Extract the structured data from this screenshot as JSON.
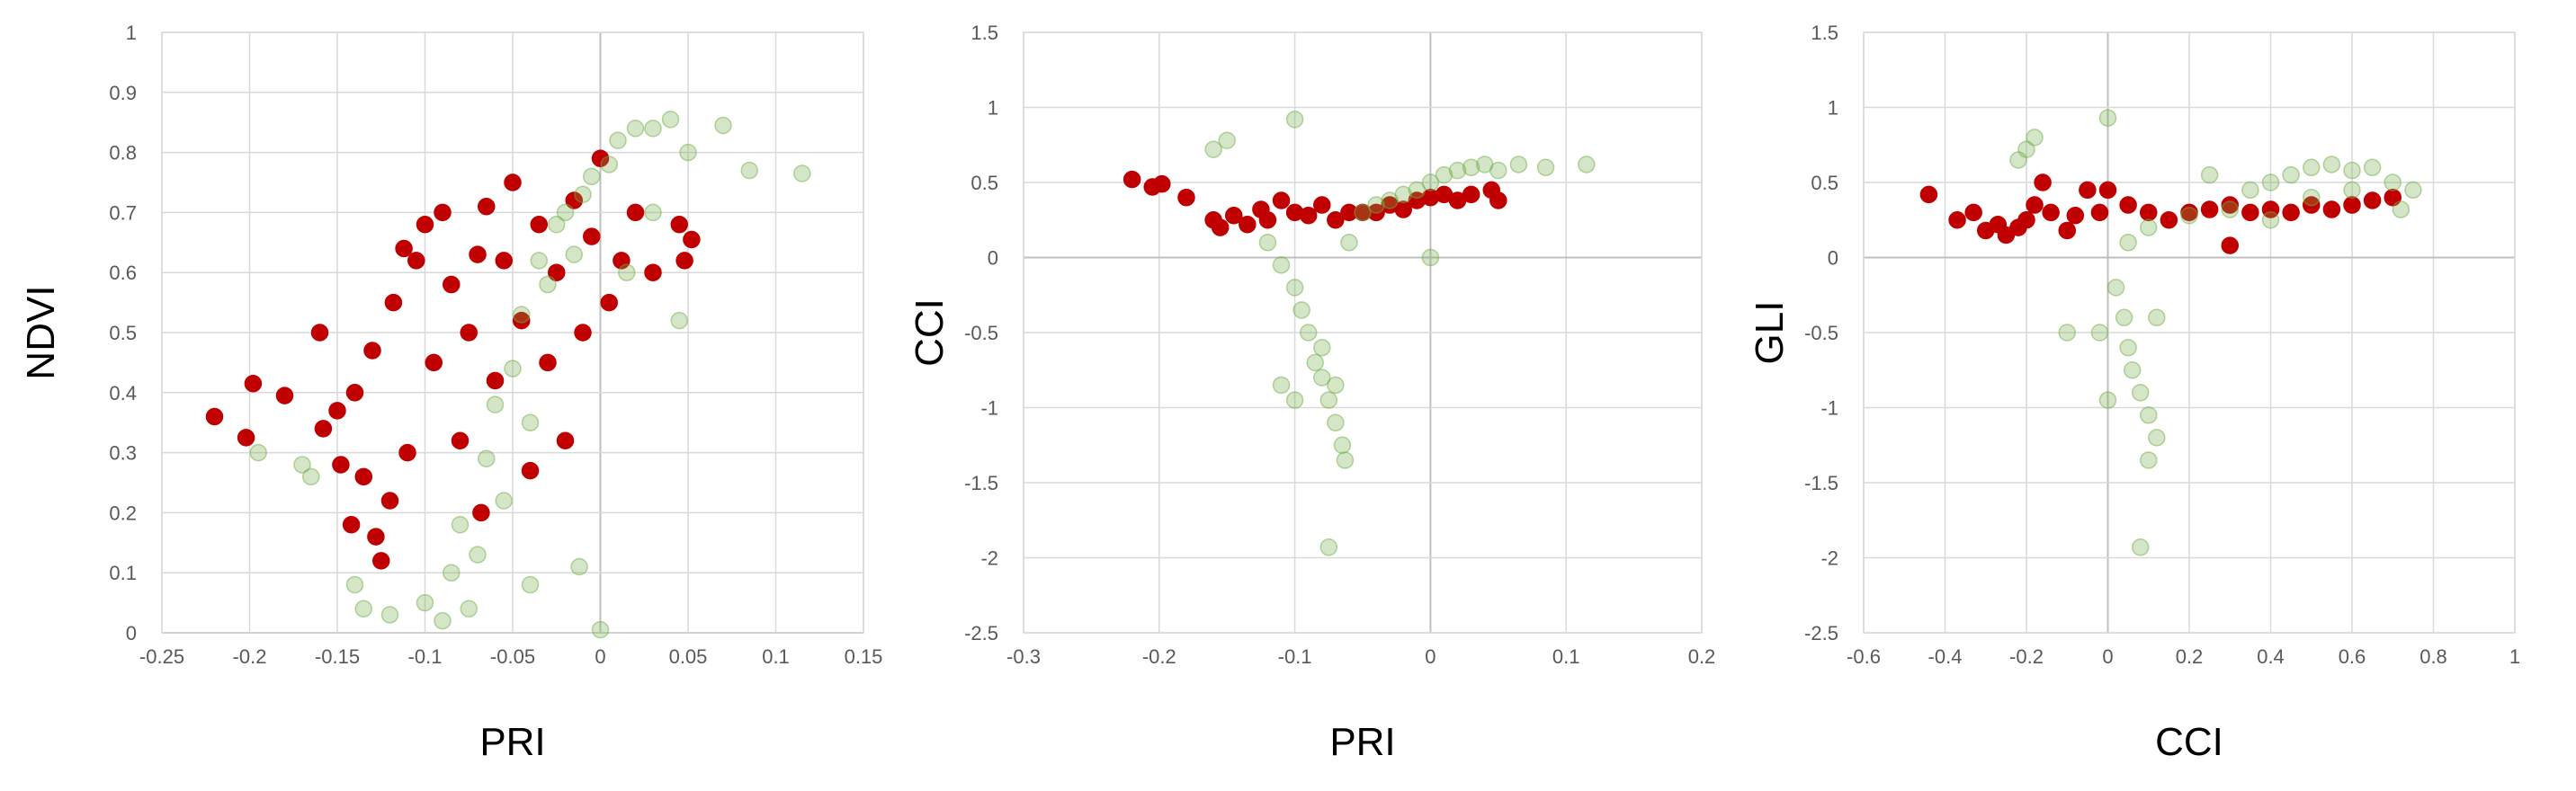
{
  "chart_data": [
    {
      "type": "scatter",
      "title": "",
      "xlabel": "PRI",
      "ylabel": "NDVI",
      "xlim": [
        -0.25,
        0.15
      ],
      "ylim": [
        0,
        1
      ],
      "xticks": [
        "-0.25",
        "-0.2",
        "-0.15",
        "-0.1",
        "-0.05",
        "0",
        "0.05",
        "0.1",
        "0.15"
      ],
      "yticks": [
        "0",
        "0.1",
        "0.2",
        "0.3",
        "0.4",
        "0.5",
        "0.6",
        "0.7",
        "0.8",
        "0.9",
        "1"
      ],
      "grid": true,
      "legend": "none",
      "series": [
        {
          "color": "#c00000",
          "opacity": 1.0,
          "points": [
            [
              -0.22,
              0.36
            ],
            [
              -0.202,
              0.325
            ],
            [
              -0.198,
              0.415
            ],
            [
              -0.18,
              0.395
            ],
            [
              -0.16,
              0.5
            ],
            [
              -0.158,
              0.34
            ],
            [
              -0.15,
              0.37
            ],
            [
              -0.148,
              0.28
            ],
            [
              -0.142,
              0.18
            ],
            [
              -0.14,
              0.4
            ],
            [
              -0.135,
              0.26
            ],
            [
              -0.13,
              0.47
            ],
            [
              -0.128,
              0.16
            ],
            [
              -0.125,
              0.12
            ],
            [
              -0.12,
              0.22
            ],
            [
              -0.118,
              0.55
            ],
            [
              -0.112,
              0.64
            ],
            [
              -0.11,
              0.3
            ],
            [
              -0.105,
              0.62
            ],
            [
              -0.1,
              0.68
            ],
            [
              -0.095,
              0.45
            ],
            [
              -0.09,
              0.7
            ],
            [
              -0.085,
              0.58
            ],
            [
              -0.08,
              0.32
            ],
            [
              -0.075,
              0.5
            ],
            [
              -0.07,
              0.63
            ],
            [
              -0.068,
              0.2
            ],
            [
              -0.065,
              0.71
            ],
            [
              -0.06,
              0.42
            ],
            [
              -0.055,
              0.62
            ],
            [
              -0.05,
              0.75
            ],
            [
              -0.045,
              0.52
            ],
            [
              -0.04,
              0.27
            ],
            [
              -0.035,
              0.68
            ],
            [
              -0.03,
              0.45
            ],
            [
              -0.025,
              0.6
            ],
            [
              -0.02,
              0.32
            ],
            [
              -0.015,
              0.72
            ],
            [
              -0.01,
              0.5
            ],
            [
              -0.005,
              0.66
            ],
            [
              0.0,
              0.79
            ],
            [
              0.005,
              0.55
            ],
            [
              0.012,
              0.62
            ],
            [
              0.02,
              0.7
            ],
            [
              0.03,
              0.6
            ],
            [
              0.045,
              0.68
            ],
            [
              0.048,
              0.62
            ],
            [
              0.052,
              0.655
            ]
          ]
        },
        {
          "color": "#70ad47",
          "opacity": 0.3,
          "points": [
            [
              -0.195,
              0.3
            ],
            [
              -0.17,
              0.28
            ],
            [
              -0.165,
              0.26
            ],
            [
              -0.14,
              0.08
            ],
            [
              -0.135,
              0.04
            ],
            [
              -0.12,
              0.03
            ],
            [
              -0.1,
              0.05
            ],
            [
              -0.09,
              0.02
            ],
            [
              -0.085,
              0.1
            ],
            [
              -0.08,
              0.18
            ],
            [
              -0.075,
              0.04
            ],
            [
              -0.07,
              0.13
            ],
            [
              -0.065,
              0.29
            ],
            [
              -0.06,
              0.38
            ],
            [
              -0.055,
              0.22
            ],
            [
              -0.05,
              0.44
            ],
            [
              -0.045,
              0.53
            ],
            [
              -0.04,
              0.35
            ],
            [
              -0.035,
              0.62
            ],
            [
              -0.03,
              0.58
            ],
            [
              -0.025,
              0.68
            ],
            [
              -0.02,
              0.7
            ],
            [
              -0.015,
              0.63
            ],
            [
              -0.012,
              0.11
            ],
            [
              -0.01,
              0.73
            ],
            [
              -0.005,
              0.76
            ],
            [
              0.0,
              0.005
            ],
            [
              0.005,
              0.78
            ],
            [
              0.01,
              0.82
            ],
            [
              0.02,
              0.84
            ],
            [
              0.03,
              0.84
            ],
            [
              0.04,
              0.855
            ],
            [
              0.05,
              0.8
            ],
            [
              0.07,
              0.845
            ],
            [
              0.085,
              0.77
            ],
            [
              0.115,
              0.765
            ],
            [
              0.045,
              0.52
            ],
            [
              0.03,
              0.7
            ],
            [
              0.015,
              0.6
            ],
            [
              -0.04,
              0.08
            ]
          ]
        }
      ]
    },
    {
      "type": "scatter",
      "title": "",
      "xlabel": "PRI",
      "ylabel": "CCI",
      "xlim": [
        -0.3,
        0.2
      ],
      "ylim": [
        -2.5,
        1.5
      ],
      "xticks": [
        "-0.3",
        "-0.2",
        "-0.1",
        "0",
        "0.1",
        "0.2"
      ],
      "yticks": [
        "-2.5",
        "-2",
        "-1.5",
        "-1",
        "-0.5",
        "0",
        "0.5",
        "1",
        "1.5"
      ],
      "grid": true,
      "legend": "none",
      "series": [
        {
          "color": "#c00000",
          "opacity": 1.0,
          "points": [
            [
              -0.22,
              0.52
            ],
            [
              -0.205,
              0.47
            ],
            [
              -0.198,
              0.49
            ],
            [
              -0.18,
              0.4
            ],
            [
              -0.16,
              0.25
            ],
            [
              -0.155,
              0.2
            ],
            [
              -0.145,
              0.28
            ],
            [
              -0.135,
              0.22
            ],
            [
              -0.125,
              0.32
            ],
            [
              -0.12,
              0.25
            ],
            [
              -0.11,
              0.38
            ],
            [
              -0.1,
              0.3
            ],
            [
              -0.09,
              0.28
            ],
            [
              -0.08,
              0.35
            ],
            [
              -0.07,
              0.25
            ],
            [
              -0.06,
              0.3
            ],
            [
              -0.05,
              0.3
            ],
            [
              -0.04,
              0.3
            ],
            [
              -0.03,
              0.35
            ],
            [
              -0.02,
              0.32
            ],
            [
              -0.01,
              0.38
            ],
            [
              0.0,
              0.4
            ],
            [
              0.01,
              0.42
            ],
            [
              0.02,
              0.38
            ],
            [
              0.03,
              0.42
            ],
            [
              0.045,
              0.45
            ],
            [
              0.05,
              0.38
            ]
          ]
        },
        {
          "color": "#70ad47",
          "opacity": 0.3,
          "points": [
            [
              -0.16,
              0.72
            ],
            [
              -0.15,
              0.78
            ],
            [
              -0.1,
              0.92
            ],
            [
              -0.12,
              0.1
            ],
            [
              -0.11,
              -0.05
            ],
            [
              -0.1,
              -0.2
            ],
            [
              -0.095,
              -0.35
            ],
            [
              -0.09,
              -0.5
            ],
            [
              -0.085,
              -0.7
            ],
            [
              -0.08,
              -0.8
            ],
            [
              -0.075,
              -0.95
            ],
            [
              -0.07,
              -1.1
            ],
            [
              -0.065,
              -1.25
            ],
            [
              -0.063,
              -1.35
            ],
            [
              -0.075,
              -1.93
            ],
            [
              -0.08,
              -0.6
            ],
            [
              -0.07,
              -0.85
            ],
            [
              -0.06,
              0.1
            ],
            [
              -0.05,
              0.3
            ],
            [
              -0.04,
              0.35
            ],
            [
              -0.03,
              0.38
            ],
            [
              -0.02,
              0.42
            ],
            [
              -0.01,
              0.45
            ],
            [
              0.0,
              0.5
            ],
            [
              0.01,
              0.55
            ],
            [
              0.02,
              0.58
            ],
            [
              0.03,
              0.6
            ],
            [
              0.04,
              0.62
            ],
            [
              0.05,
              0.58
            ],
            [
              0.065,
              0.62
            ],
            [
              0.085,
              0.6
            ],
            [
              0.115,
              0.62
            ],
            [
              0.0,
              0.0
            ],
            [
              -0.11,
              -0.85
            ],
            [
              -0.1,
              -0.95
            ]
          ]
        }
      ]
    },
    {
      "type": "scatter",
      "title": "",
      "xlabel": "CCI",
      "ylabel": "GLI",
      "xlim": [
        -0.6,
        1
      ],
      "ylim": [
        -2.5,
        1.5
      ],
      "xticks": [
        "-0.6",
        "-0.4",
        "-0.2",
        "0",
        "0.2",
        "0.4",
        "0.6",
        "0.8",
        "1"
      ],
      "yticks": [
        "-2.5",
        "-2",
        "-1.5",
        "-1",
        "-0.5",
        "0",
        "0.5",
        "1",
        "1.5"
      ],
      "grid": true,
      "legend": "none",
      "series": [
        {
          "color": "#c00000",
          "opacity": 1.0,
          "points": [
            [
              -0.44,
              0.42
            ],
            [
              -0.37,
              0.25
            ],
            [
              -0.33,
              0.3
            ],
            [
              -0.3,
              0.18
            ],
            [
              -0.27,
              0.22
            ],
            [
              -0.25,
              0.15
            ],
            [
              -0.22,
              0.2
            ],
            [
              -0.2,
              0.25
            ],
            [
              -0.18,
              0.35
            ],
            [
              -0.16,
              0.5
            ],
            [
              -0.14,
              0.3
            ],
            [
              -0.1,
              0.18
            ],
            [
              -0.08,
              0.28
            ],
            [
              -0.05,
              0.45
            ],
            [
              -0.02,
              0.3
            ],
            [
              0.0,
              0.45
            ],
            [
              0.05,
              0.35
            ],
            [
              0.1,
              0.3
            ],
            [
              0.15,
              0.25
            ],
            [
              0.2,
              0.3
            ],
            [
              0.25,
              0.32
            ],
            [
              0.3,
              0.35
            ],
            [
              0.35,
              0.3
            ],
            [
              0.4,
              0.32
            ],
            [
              0.45,
              0.3
            ],
            [
              0.5,
              0.35
            ],
            [
              0.55,
              0.32
            ],
            [
              0.6,
              0.35
            ],
            [
              0.65,
              0.38
            ],
            [
              0.7,
              0.4
            ],
            [
              0.3,
              0.08
            ]
          ]
        },
        {
          "color": "#70ad47",
          "opacity": 0.3,
          "points": [
            [
              -0.22,
              0.65
            ],
            [
              -0.2,
              0.72
            ],
            [
              -0.18,
              0.8
            ],
            [
              -0.1,
              -0.5
            ],
            [
              0.0,
              0.93
            ],
            [
              0.02,
              -0.2
            ],
            [
              0.04,
              -0.4
            ],
            [
              0.05,
              -0.6
            ],
            [
              0.06,
              -0.75
            ],
            [
              0.08,
              -0.9
            ],
            [
              0.1,
              -1.05
            ],
            [
              0.12,
              -1.2
            ],
            [
              0.1,
              -1.35
            ],
            [
              0.08,
              -1.93
            ],
            [
              0.0,
              -0.95
            ],
            [
              -0.02,
              -0.5
            ],
            [
              0.05,
              0.1
            ],
            [
              0.1,
              0.2
            ],
            [
              0.2,
              0.28
            ],
            [
              0.3,
              0.32
            ],
            [
              0.35,
              0.45
            ],
            [
              0.4,
              0.5
            ],
            [
              0.45,
              0.55
            ],
            [
              0.5,
              0.6
            ],
            [
              0.55,
              0.62
            ],
            [
              0.6,
              0.58
            ],
            [
              0.65,
              0.6
            ],
            [
              0.7,
              0.5
            ],
            [
              0.75,
              0.45
            ],
            [
              0.72,
              0.32
            ],
            [
              0.4,
              0.25
            ],
            [
              0.5,
              0.4
            ],
            [
              0.6,
              0.45
            ],
            [
              0.25,
              0.55
            ],
            [
              0.12,
              -0.4
            ]
          ]
        }
      ]
    }
  ]
}
